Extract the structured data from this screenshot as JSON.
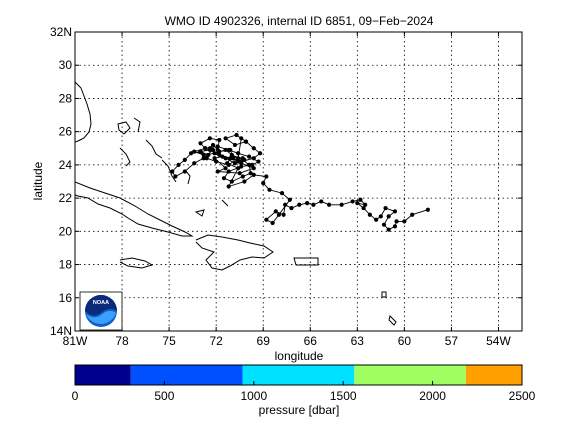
{
  "chart_data": {
    "type": "scatter",
    "title": "WMO ID 4902326, internal ID 6851, 09−Feb−2024",
    "xlabel": "longitude",
    "ylabel": "latitude",
    "xlim": [
      -81,
      -52.5
    ],
    "ylim": [
      14,
      32
    ],
    "grid": true,
    "x_ticks": [
      -81,
      -78,
      -75,
      -72,
      -69,
      -66,
      -63,
      -60,
      -57,
      -54
    ],
    "x_tick_labels": [
      "81W",
      "78",
      "75",
      "72",
      "69",
      "66",
      "63",
      "60",
      "57",
      "54W"
    ],
    "y_ticks": [
      14,
      16,
      18,
      20,
      22,
      24,
      26,
      28,
      30,
      32
    ],
    "y_tick_labels": [
      "14N",
      "16",
      "18",
      "20",
      "22",
      "24",
      "26",
      "28",
      "30",
      "32N"
    ],
    "series": [
      {
        "marker": "filled-circle",
        "color": "#000000",
        "x": [
          -58.5,
          -59.5,
          -60.0,
          -60.5,
          -60.6,
          -61.0,
          -61.3,
          -61.0,
          -60.6,
          -61.2,
          -61.5,
          -61.8,
          -62.2,
          -62.6,
          -63.0,
          -62.5,
          -62.8,
          -63.3,
          -64.0,
          -64.8,
          -65.3,
          -65.8,
          -66.2,
          -66.7,
          -67.2,
          -67.6,
          -67.7,
          -68.2,
          -68.8,
          -68.4,
          -68.0,
          -67.3,
          -67.8,
          -68.6,
          -69.0,
          -68.8,
          -69.6,
          -70.2,
          -71.2,
          -70.6,
          -71.3,
          -71.0,
          -70.3,
          -70.8,
          -71.6,
          -72.1,
          -71.4,
          -71.9,
          -70.5,
          -69.6,
          -70.4,
          -70.9,
          -71.1,
          -71.8,
          -72.5,
          -73.0,
          -73.6,
          -74.0,
          -74.4,
          -74.8,
          -74.6,
          -74.0,
          -73.4,
          -72.8,
          -72.2,
          -72.4,
          -72.2,
          -71.9,
          -71.8,
          -72.4,
          -73.0,
          -72.7,
          -71.9,
          -71.4,
          -70.4,
          -69.6,
          -69.2,
          -69.6,
          -70.1,
          -70.7,
          -71.4,
          -70.8,
          -70.1,
          -70.4,
          -70.6,
          -71.2,
          -72.0,
          -72.6,
          -73.0,
          -72.4,
          -71.8,
          -71.1,
          -70.6,
          -70.3,
          -69.9,
          -69.8,
          -70.3,
          -71.0,
          -71.5,
          -71.2,
          -70.4,
          -69.7,
          -69.3,
          -69.9,
          -70.6,
          -71.2,
          -71.9,
          -72.7,
          -73.4,
          -72.8,
          -72.1,
          -71.4,
          -71.0,
          -70.2
        ],
        "y": [
          21.3,
          21.0,
          20.6,
          20.6,
          20.3,
          20.1,
          20.4,
          20.9,
          21.2,
          21.4,
          20.9,
          20.7,
          21.0,
          21.4,
          21.7,
          21.6,
          21.9,
          21.8,
          21.6,
          21.6,
          21.8,
          21.6,
          21.7,
          21.6,
          21.4,
          21.6,
          21.0,
          21.2,
          20.7,
          20.5,
          21.0,
          21.9,
          22.3,
          22.5,
          22.9,
          23.3,
          23.4,
          23.0,
          22.7,
          23.8,
          24.1,
          24.5,
          24.4,
          24.1,
          24.5,
          24.4,
          23.8,
          23.6,
          23.5,
          23.8,
          24.1,
          24.4,
          24.9,
          24.8,
          24.6,
          24.8,
          24.7,
          24.3,
          24.0,
          23.6,
          23.3,
          23.6,
          24.1,
          24.4,
          24.9,
          25.0,
          25.2,
          24.9,
          25.5,
          25.6,
          25.3,
          25.0,
          24.7,
          24.4,
          24.2,
          24.4,
          24.7,
          25.0,
          25.4,
          25.8,
          25.6,
          25.2,
          25.4,
          25.6,
          24.4,
          24.0,
          24.2,
          24.4,
          24.8,
          24.9,
          24.6,
          24.4,
          24.2,
          24.3,
          24.0,
          23.5,
          23.3,
          23.0,
          23.2,
          23.6,
          23.9,
          24.0,
          24.2,
          24.5,
          24.7,
          24.9,
          25.1,
          25.0,
          24.8,
          24.6,
          24.7,
          24.9,
          24.6,
          24.3
        ]
      }
    ]
  },
  "colorbar": {
    "label": "pressure [dbar]",
    "tick_values": [
      0,
      500,
      1000,
      1500,
      2000,
      2500
    ],
    "tick_labels": [
      "0",
      "500",
      "1000",
      "1500",
      "2000",
      "2500"
    ],
    "range": [
      0,
      2500
    ],
    "bands": [
      {
        "from": 0,
        "to": 312,
        "color": "#00008f"
      },
      {
        "from": 312,
        "to": 937,
        "color": "#0050ff"
      },
      {
        "from": 937,
        "to": 1562,
        "color": "#00e0ff"
      },
      {
        "from": 1562,
        "to": 2187,
        "color": "#a0ff60"
      },
      {
        "from": 2187,
        "to": 2500,
        "color": "#ffa000"
      }
    ]
  },
  "logo": {
    "icon": "noaa-logo",
    "text": "NOAA"
  }
}
